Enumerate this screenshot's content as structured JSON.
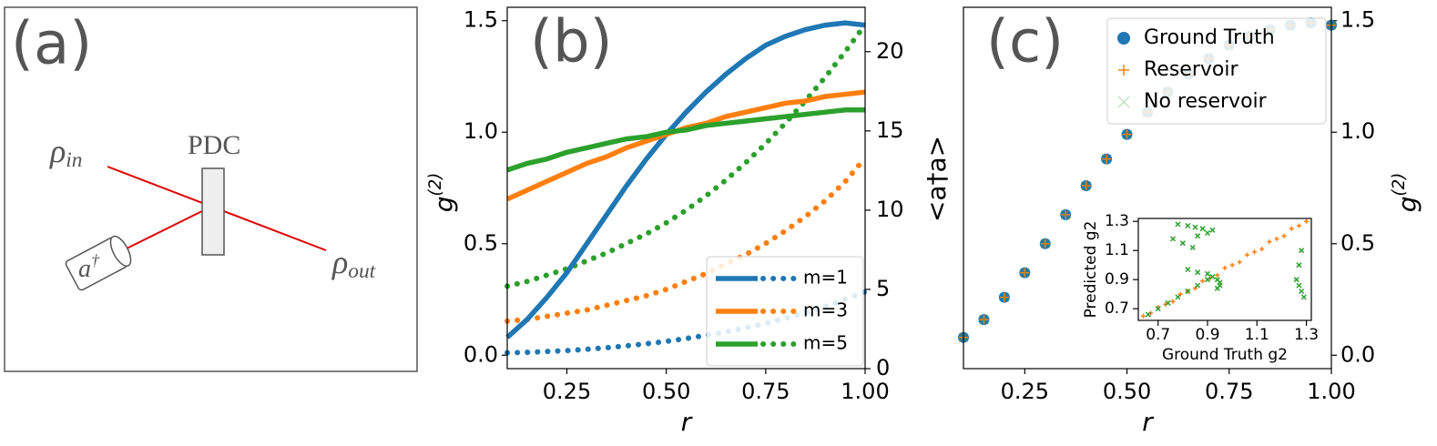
{
  "diagram": {
    "panel_label": "(a)",
    "input": {
      "base": "ρ",
      "sub": "in"
    },
    "crystal": "PDC",
    "mode": {
      "base": "a",
      "sup": "†"
    },
    "output": {
      "base": "ρ",
      "sub": "out"
    }
  },
  "chart_data": [
    {
      "type": "line",
      "panel_label": "(b)",
      "x": [
        0.1,
        0.15,
        0.2,
        0.25,
        0.3,
        0.35,
        0.4,
        0.45,
        0.5,
        0.55,
        0.6,
        0.65,
        0.7,
        0.75,
        0.8,
        0.85,
        0.9,
        0.95,
        1.0
      ],
      "xlim": [
        0.1,
        1.0
      ],
      "xticks": [
        0.25,
        {
          "value": 0.5,
          "label": "0.50"
        },
        0.75,
        {
          "value": 1,
          "label": "1.00"
        }
      ],
      "xlabel": "r",
      "ylabel": {
        "base": "g",
        "sup": "(2)"
      },
      "ylim": [
        -0.06,
        1.56
      ],
      "yticks": [
        {
          "value": 0,
          "label": "0.0"
        },
        0.5,
        {
          "value": 1,
          "label": "1.0"
        },
        1.5
      ],
      "y2label": "<a†a>",
      "y2lim": [
        0,
        22.8
      ],
      "y2ticks": [
        0,
        5,
        10,
        15,
        20
      ],
      "legend": "lower right",
      "series": [
        {
          "name": "m=1",
          "color": "#1f77b4",
          "values": [
            0.08,
            0.16,
            0.26,
            0.37,
            0.5,
            0.63,
            0.76,
            0.88,
            0.99,
            1.09,
            1.18,
            1.26,
            1.33,
            1.39,
            1.43,
            1.46,
            1.48,
            1.49,
            1.48
          ]
        },
        {
          "name": "m=3",
          "color": "#ff7f0e",
          "values": [
            0.7,
            0.74,
            0.78,
            0.82,
            0.86,
            0.89,
            0.93,
            0.96,
            0.99,
            1.02,
            1.04,
            1.07,
            1.09,
            1.11,
            1.13,
            1.14,
            1.16,
            1.17,
            1.18
          ]
        },
        {
          "name": "m=5",
          "color": "#2ca02c",
          "values": [
            0.83,
            0.86,
            0.88,
            0.91,
            0.93,
            0.95,
            0.97,
            0.98,
            1.0,
            1.01,
            1.03,
            1.04,
            1.05,
            1.06,
            1.07,
            1.08,
            1.09,
            1.1,
            1.1
          ]
        }
      ],
      "y2_series": [
        {
          "color": "#1f77b4",
          "axis": "y2",
          "linestyle": "dotted",
          "values": [
            1.0,
            1.03,
            1.08,
            1.14,
            1.22,
            1.32,
            1.44,
            1.57,
            1.72,
            1.9,
            2.1,
            2.32,
            2.58,
            2.86,
            3.18,
            3.53,
            3.92,
            4.37,
            4.85
          ]
        },
        {
          "color": "#ff7f0e",
          "axis": "y2",
          "linestyle": "dotted",
          "values": [
            3.0,
            3.1,
            3.3,
            3.5,
            3.7,
            4.0,
            4.3,
            4.6,
            5.0,
            5.5,
            6.0,
            6.6,
            7.2,
            7.9,
            8.7,
            9.6,
            10.6,
            11.8,
            13.3
          ]
        },
        {
          "color": "#2ca02c",
          "axis": "y2",
          "linestyle": "dotted",
          "values": [
            5.2,
            5.5,
            5.9,
            6.3,
            6.8,
            7.3,
            7.9,
            8.5,
            9.2,
            10.0,
            10.9,
            11.9,
            13.0,
            14.2,
            15.5,
            16.9,
            18.4,
            20.0,
            21.7
          ]
        }
      ]
    },
    {
      "type": "scatter",
      "panel_label": "(c)",
      "x": [
        0.1,
        0.15,
        0.2,
        0.25,
        0.3,
        0.35,
        0.4,
        0.45,
        0.5,
        0.55,
        0.6,
        0.65,
        0.7,
        0.75,
        0.8,
        0.85,
        0.9,
        0.95,
        1.0
      ],
      "xlim": [
        0.1,
        1.0
      ],
      "xticks": [
        0.25,
        {
          "value": 0.5,
          "label": "0.50"
        },
        0.75,
        {
          "value": 1,
          "label": "1.00"
        }
      ],
      "xlabel": "r",
      "ylabel": {
        "base": "g",
        "sup": "(2)"
      },
      "yaxis": "right",
      "ylim": [
        -0.06,
        1.56
      ],
      "yticks": [
        {
          "value": 0,
          "label": "0.0"
        },
        0.5,
        {
          "value": 1,
          "label": "1.0"
        },
        1.5
      ],
      "legend": "upper right",
      "series": [
        {
          "name": "Ground Truth",
          "color": "#1f77b4",
          "marker": "o",
          "values": [
            0.08,
            0.16,
            0.26,
            0.37,
            0.5,
            0.63,
            0.76,
            0.88,
            0.99,
            1.09,
            1.18,
            1.26,
            1.33,
            1.39,
            1.43,
            1.46,
            1.48,
            1.49,
            1.48
          ]
        },
        {
          "name": "Reservoir",
          "color": "#ff7f0e",
          "marker": "+",
          "values": [
            0.08,
            0.16,
            0.26,
            0.37,
            0.5,
            0.63,
            0.76,
            0.88,
            0.99,
            1.09,
            1.18,
            1.26,
            1.33,
            1.39,
            1.43,
            1.46,
            1.48,
            1.49,
            1.48
          ]
        },
        {
          "name": "No reservoir",
          "color": "#2ca02c",
          "marker": "x",
          "alpha": 0.3,
          "values": [
            0.08,
            0.16,
            0.26,
            0.37,
            0.5,
            0.63,
            0.76,
            0.88,
            0.99,
            1.09,
            1.18,
            1.26,
            1.33,
            1.39,
            1.43,
            1.46,
            1.48,
            1.49,
            1.48
          ]
        }
      ]
    },
    {
      "type": "scatter",
      "xlabel": "Ground Truth g2",
      "ylabel": "Predicted g2",
      "xlim": [
        0.62,
        1.32
      ],
      "ylim": [
        0.62,
        1.32
      ],
      "xticks": [
        0.7,
        0.9,
        1.1,
        1.3
      ],
      "yticks": [
        0.7,
        0.9,
        1.1,
        1.3
      ],
      "series": [
        {
          "color": "#ff7f0e",
          "marker": "+",
          "x": [
            0.64,
            0.67,
            0.7,
            0.73,
            0.76,
            0.79,
            0.82,
            0.85,
            0.88,
            0.91,
            0.94,
            0.97,
            1.0,
            1.03,
            1.06,
            1.09,
            1.12,
            1.15,
            1.18,
            1.21,
            1.24,
            1.27,
            1.3
          ],
          "values": [
            0.65,
            0.67,
            0.71,
            0.73,
            0.75,
            0.8,
            0.82,
            0.84,
            0.89,
            0.91,
            0.93,
            0.98,
            1.0,
            1.02,
            1.07,
            1.09,
            1.11,
            1.16,
            1.18,
            1.2,
            1.25,
            1.27,
            1.3
          ]
        },
        {
          "color": "#2ca02c",
          "marker": "x",
          "x": [
            0.66,
            0.7,
            0.74,
            0.78,
            0.82,
            0.86,
            0.9,
            0.78,
            0.82,
            0.85,
            0.88,
            0.76,
            0.8,
            0.84,
            0.86,
            0.9,
            0.92,
            0.82,
            0.86,
            0.9,
            0.92,
            0.94,
            0.95,
            0.95,
            0.94,
            1.26,
            1.27,
            1.28,
            1.29,
            1.27,
            1.28
          ],
          "values": [
            0.66,
            0.7,
            0.74,
            0.78,
            0.82,
            0.86,
            0.9,
            1.28,
            1.27,
            1.26,
            1.25,
            1.18,
            1.15,
            1.12,
            1.2,
            1.22,
            1.24,
            0.97,
            0.95,
            0.94,
            0.92,
            0.9,
            0.88,
            0.86,
            0.84,
            0.9,
            0.86,
            0.82,
            0.78,
            1.0,
            1.1
          ]
        }
      ]
    }
  ]
}
